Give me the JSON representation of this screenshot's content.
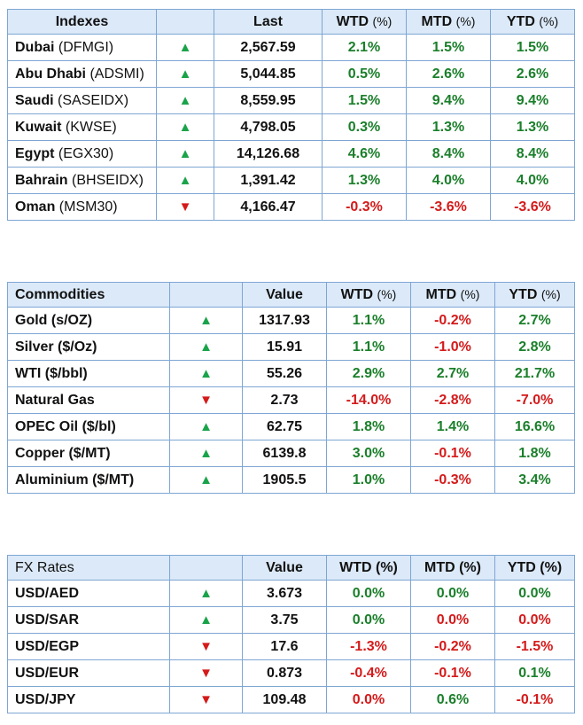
{
  "colors": {
    "header_bg": "#dbe9f8",
    "border": "#7ea6d4",
    "up": "#1aa34a",
    "down": "#d41a1a",
    "positive": "#1a7f2a",
    "negative": "#d41a1a"
  },
  "indexes": {
    "headers": {
      "name": "Indexes",
      "last": "Last",
      "wtd": "WTD",
      "mtd": "MTD",
      "ytd": "YTD",
      "pct": "(%)"
    },
    "rows": [
      {
        "name": "Dubai",
        "code": "(DFMGI)",
        "dir": "up",
        "arrow": "▲",
        "value": "2,567.59",
        "wtd": "2.1%",
        "mtd": "1.5%",
        "ytd": "1.5%"
      },
      {
        "name": "Abu Dhabi",
        "code": "(ADSMI)",
        "dir": "up",
        "arrow": "▲",
        "value": "5,044.85",
        "wtd": "0.5%",
        "mtd": "2.6%",
        "ytd": "2.6%"
      },
      {
        "name": "Saudi",
        "code": "(SASEIDX)",
        "dir": "up",
        "arrow": "▲",
        "value": "8,559.95",
        "wtd": "1.5%",
        "mtd": "9.4%",
        "ytd": "9.4%"
      },
      {
        "name": "Kuwait",
        "code": "(KWSE)",
        "dir": "up",
        "arrow": "▲",
        "value": "4,798.05",
        "wtd": "0.3%",
        "mtd": "1.3%",
        "ytd": "1.3%"
      },
      {
        "name": "Egypt",
        "code": "(EGX30)",
        "dir": "up",
        "arrow": "▲",
        "value": "14,126.68",
        "wtd": "4.6%",
        "mtd": "8.4%",
        "ytd": "8.4%"
      },
      {
        "name": "Bahrain",
        "code": "(BHSEIDX)",
        "dir": "up",
        "arrow": "▲",
        "value": "1,391.42",
        "wtd": "1.3%",
        "mtd": "4.0%",
        "ytd": "4.0%"
      },
      {
        "name": "Oman",
        "code": "(MSM30)",
        "dir": "down",
        "arrow": "▼",
        "value": "4,166.47",
        "wtd": "-0.3%",
        "mtd": "-3.6%",
        "ytd": "-3.6%"
      }
    ]
  },
  "commodities": {
    "headers": {
      "name": "Commodities",
      "value": "Value",
      "wtd": "WTD",
      "mtd": "MTD",
      "ytd": "YTD",
      "pct": "(%)"
    },
    "rows": [
      {
        "name": "Gold (s/OZ)",
        "dir": "up",
        "arrow": "▲",
        "value": "1317.93",
        "wtd": "1.1%",
        "mtd": "-0.2%",
        "ytd": "2.7%"
      },
      {
        "name": "Silver ($/Oz)",
        "dir": "up",
        "arrow": "▲",
        "value": "15.91",
        "wtd": "1.1%",
        "mtd": "-1.0%",
        "ytd": "2.8%"
      },
      {
        "name": "WTI ($/bbl)",
        "dir": "up",
        "arrow": "▲",
        "value": "55.26",
        "wtd": "2.9%",
        "mtd": "2.7%",
        "ytd": "21.7%"
      },
      {
        "name": "Natural Gas",
        "dir": "down",
        "arrow": "▼",
        "value": "2.73",
        "wtd": "-14.0%",
        "mtd": "-2.8%",
        "ytd": "-7.0%"
      },
      {
        "name": "OPEC Oil ($/bl)",
        "dir": "up",
        "arrow": "▲",
        "value": "62.75",
        "wtd": "1.8%",
        "mtd": "1.4%",
        "ytd": "16.6%"
      },
      {
        "name": "Copper ($/MT)",
        "dir": "up",
        "arrow": "▲",
        "value": "6139.8",
        "wtd": "3.0%",
        "mtd": "-0.1%",
        "ytd": "1.8%"
      },
      {
        "name": "Aluminium ($/MT)",
        "dir": "up",
        "arrow": "▲",
        "value": "1905.5",
        "wtd": "1.0%",
        "mtd": "-0.3%",
        "ytd": "3.4%"
      }
    ]
  },
  "fx": {
    "headers": {
      "name": "FX Rates",
      "value": "Value",
      "wtd": "WTD (%)",
      "mtd": "MTD (%)",
      "ytd": "YTD (%)"
    },
    "rows": [
      {
        "name": "USD/AED",
        "dir": "up",
        "arrow": "▲",
        "value": "3.673",
        "wtd": "0.0%",
        "mtd": "0.0%",
        "ytd": "0.0%",
        "wtd_sign": "pos",
        "mtd_sign": "pos",
        "ytd_sign": "pos"
      },
      {
        "name": "USD/SAR",
        "dir": "up",
        "arrow": "▲",
        "value": "3.75",
        "wtd": "0.0%",
        "mtd": "0.0%",
        "ytd": "0.0%",
        "wtd_sign": "pos",
        "mtd_sign": "neg",
        "ytd_sign": "neg"
      },
      {
        "name": "USD/EGP",
        "dir": "down",
        "arrow": "▼",
        "value": "17.6",
        "wtd": "-1.3%",
        "mtd": "-0.2%",
        "ytd": "-1.5%",
        "wtd_sign": "neg",
        "mtd_sign": "neg",
        "ytd_sign": "neg"
      },
      {
        "name": "USD/EUR",
        "dir": "down",
        "arrow": "▼",
        "value": "0.873",
        "wtd": "-0.4%",
        "mtd": "-0.1%",
        "ytd": "0.1%",
        "wtd_sign": "neg",
        "mtd_sign": "neg",
        "ytd_sign": "pos"
      },
      {
        "name": "USD/JPY",
        "dir": "down",
        "arrow": "▼",
        "value": "109.48",
        "wtd": "0.0%",
        "mtd": "0.6%",
        "ytd": "-0.1%",
        "wtd_sign": "neg",
        "mtd_sign": "pos",
        "ytd_sign": "neg"
      }
    ]
  }
}
